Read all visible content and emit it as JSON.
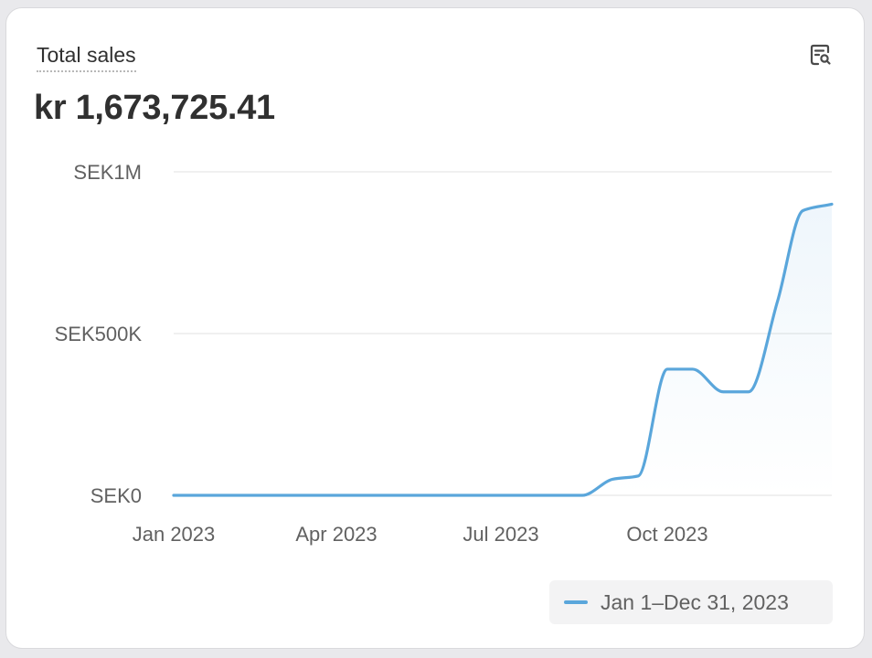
{
  "card": {
    "title": "Total sales",
    "total_value": "kr 1,673,725.41"
  },
  "icons": {
    "explore": "chart-search-icon"
  },
  "colors": {
    "line": "#5aa6db",
    "gridline": "#e6e6e6",
    "legend_bg": "#f3f3f4"
  },
  "chart_data": {
    "type": "line",
    "title": "Total sales",
    "x": [
      "2023-01-01",
      "2023-02-01",
      "2023-03-01",
      "2023-04-01",
      "2023-05-01",
      "2023-06-01",
      "2023-07-01",
      "2023-08-01",
      "2023-08-15",
      "2023-09-01",
      "2023-09-15",
      "2023-10-01",
      "2023-10-15",
      "2023-11-01",
      "2023-11-15",
      "2023-12-01",
      "2023-12-15",
      "2023-12-31"
    ],
    "series": [
      {
        "name": "Jan 1–Dec 31, 2023",
        "values": [
          0,
          0,
          0,
          0,
          0,
          0,
          0,
          0,
          0,
          50000,
          60000,
          390000,
          390000,
          320000,
          320000,
          600000,
          880000,
          900000
        ]
      }
    ],
    "yticks": [
      {
        "value": 0,
        "label": "SEK0"
      },
      {
        "value": 500000,
        "label": "SEK500K"
      },
      {
        "value": 1000000,
        "label": "SEK1M"
      }
    ],
    "xticks": [
      {
        "date": "2023-01-01",
        "label": "Jan 2023"
      },
      {
        "date": "2023-04-01",
        "label": "Apr 2023"
      },
      {
        "date": "2023-07-01",
        "label": "Jul 2023"
      },
      {
        "date": "2023-10-01",
        "label": "Oct 2023"
      }
    ],
    "xlim": [
      "2023-01-01",
      "2023-12-31"
    ],
    "ylim": [
      0,
      1000000
    ],
    "grid": true,
    "legend_position": "bottom-right"
  }
}
